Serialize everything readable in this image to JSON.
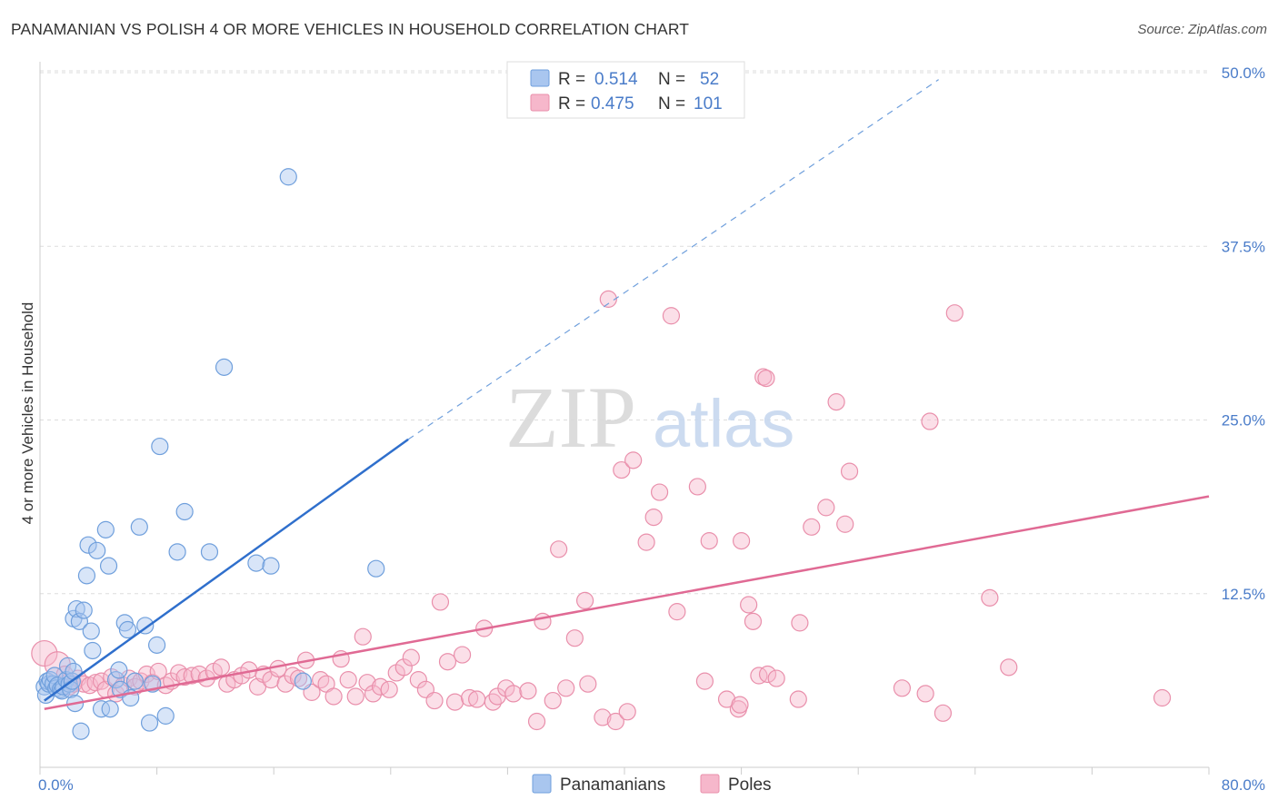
{
  "header": {
    "title": "PANAMANIAN VS POLISH 4 OR MORE VEHICLES IN HOUSEHOLD CORRELATION CHART",
    "source": "Source: ZipAtlas.com"
  },
  "watermark": {
    "zip": "ZIP",
    "atlas": "atlas"
  },
  "colors": {
    "blue_fill": "#a9c6ef",
    "blue_stroke": "#6f9fdc",
    "blue_line": "#2f6fcc",
    "pink_fill": "#f6b7cb",
    "pink_stroke": "#e98fab",
    "pink_line": "#e06a94",
    "grid": "#dddddd",
    "tick_text": "#4a7cc9"
  },
  "legend": {
    "rows": [
      {
        "r_label": "R =",
        "r_value": "0.514",
        "n_label": "N =",
        "n_value": "52"
      },
      {
        "r_label": "R =",
        "r_value": "0.475",
        "n_label": "N =",
        "n_value": "101"
      }
    ]
  },
  "bottom_legend": {
    "items": [
      "Panamanians",
      "Poles"
    ]
  },
  "chart_data": {
    "type": "scatter",
    "title": "PANAMANIAN VS POLISH 4 OR MORE VEHICLES IN HOUSEHOLD CORRELATION CHART",
    "xlabel": "",
    "ylabel": "4 or more Vehicles in Household",
    "xlim": [
      0,
      80
    ],
    "ylim": [
      0,
      50
    ],
    "x_tick_labels": [
      "0.0%",
      "80.0%"
    ],
    "y_ticks": [
      12.5,
      25.0,
      37.5,
      50.0
    ],
    "y_tick_labels": [
      "12.5%",
      "25.0%",
      "37.5%",
      "50.0%"
    ],
    "grid": true,
    "legend_position": "top-center",
    "series": [
      {
        "name": "Panamanians",
        "color": "#a9c6ef",
        "trend": {
          "x": [
            0.3,
            25.2
          ],
          "y": [
            4.8,
            23.6
          ],
          "dashed_extension": {
            "x": [
              25.2,
              61.5
            ],
            "y": [
              23.6,
              49.5
            ]
          }
        },
        "points": [
          [
            0.3,
            5.8
          ],
          [
            0.4,
            5.2
          ],
          [
            0.5,
            6.2
          ],
          [
            0.6,
            6.0
          ],
          [
            0.7,
            6.3
          ],
          [
            0.9,
            6.0
          ],
          [
            1.0,
            6.6
          ],
          [
            1.1,
            5.7
          ],
          [
            1.2,
            5.9
          ],
          [
            1.4,
            5.6
          ],
          [
            1.5,
            5.5
          ],
          [
            1.6,
            5.8
          ],
          [
            1.8,
            6.3
          ],
          [
            1.9,
            7.3
          ],
          [
            2.0,
            6.0
          ],
          [
            2.1,
            5.6
          ],
          [
            2.2,
            6.2
          ],
          [
            2.3,
            6.9
          ],
          [
            2.4,
            4.6
          ],
          [
            2.3,
            10.7
          ],
          [
            2.5,
            11.4
          ],
          [
            2.7,
            10.5
          ],
          [
            2.8,
            2.6
          ],
          [
            3.0,
            11.3
          ],
          [
            3.2,
            13.8
          ],
          [
            3.3,
            16.0
          ],
          [
            3.5,
            9.8
          ],
          [
            3.6,
            8.4
          ],
          [
            3.9,
            15.6
          ],
          [
            4.2,
            4.2
          ],
          [
            4.5,
            17.1
          ],
          [
            4.7,
            14.5
          ],
          [
            4.8,
            4.2
          ],
          [
            5.2,
            6.3
          ],
          [
            5.5,
            5.6
          ],
          [
            5.4,
            7.0
          ],
          [
            5.8,
            10.4
          ],
          [
            6.0,
            9.9
          ],
          [
            6.2,
            5.0
          ],
          [
            6.5,
            6.2
          ],
          [
            6.8,
            17.3
          ],
          [
            7.2,
            10.2
          ],
          [
            7.5,
            3.2
          ],
          [
            7.7,
            6.0
          ],
          [
            8.0,
            8.8
          ],
          [
            8.2,
            23.1
          ],
          [
            8.6,
            3.7
          ],
          [
            9.4,
            15.5
          ],
          [
            9.9,
            18.4
          ],
          [
            11.6,
            15.5
          ],
          [
            12.6,
            28.8
          ],
          [
            14.8,
            14.7
          ],
          [
            15.8,
            14.5
          ],
          [
            17.0,
            42.5
          ],
          [
            18.0,
            6.2
          ],
          [
            23.0,
            14.3
          ]
        ]
      },
      {
        "name": "Poles",
        "color": "#f6b7cb",
        "trend": {
          "x": [
            0.3,
            80
          ],
          "y": [
            4.2,
            19.5
          ]
        },
        "points": [
          [
            0.3,
            8.2
          ],
          [
            1.2,
            7.4
          ],
          [
            1.7,
            6.7
          ],
          [
            2.0,
            5.8
          ],
          [
            2.3,
            6.0
          ],
          [
            2.6,
            6.4
          ],
          [
            3.0,
            6.0
          ],
          [
            3.4,
            5.9
          ],
          [
            3.8,
            6.1
          ],
          [
            4.2,
            6.2
          ],
          [
            4.5,
            5.6
          ],
          [
            4.9,
            6.5
          ],
          [
            5.2,
            5.3
          ],
          [
            5.7,
            5.9
          ],
          [
            6.1,
            6.4
          ],
          [
            6.5,
            5.8
          ],
          [
            6.9,
            6.2
          ],
          [
            7.3,
            6.7
          ],
          [
            7.7,
            6.1
          ],
          [
            8.1,
            6.9
          ],
          [
            8.6,
            5.9
          ],
          [
            9.0,
            6.2
          ],
          [
            9.5,
            6.8
          ],
          [
            9.9,
            6.5
          ],
          [
            10.4,
            6.6
          ],
          [
            10.9,
            6.7
          ],
          [
            11.4,
            6.4
          ],
          [
            11.9,
            6.9
          ],
          [
            12.4,
            7.2
          ],
          [
            12.8,
            6.0
          ],
          [
            13.3,
            6.3
          ],
          [
            13.8,
            6.6
          ],
          [
            14.3,
            7.0
          ],
          [
            14.9,
            5.8
          ],
          [
            15.3,
            6.7
          ],
          [
            15.8,
            6.3
          ],
          [
            16.3,
            7.1
          ],
          [
            16.8,
            6.0
          ],
          [
            17.3,
            6.6
          ],
          [
            17.7,
            6.4
          ],
          [
            18.2,
            7.7
          ],
          [
            18.6,
            5.4
          ],
          [
            19.2,
            6.3
          ],
          [
            19.6,
            6.0
          ],
          [
            20.1,
            5.1
          ],
          [
            20.6,
            7.8
          ],
          [
            21.1,
            6.3
          ],
          [
            21.6,
            5.1
          ],
          [
            22.1,
            9.4
          ],
          [
            22.4,
            6.1
          ],
          [
            22.8,
            5.3
          ],
          [
            23.3,
            5.8
          ],
          [
            23.9,
            5.6
          ],
          [
            24.4,
            6.8
          ],
          [
            24.9,
            7.2
          ],
          [
            25.4,
            7.9
          ],
          [
            25.9,
            6.3
          ],
          [
            26.4,
            5.6
          ],
          [
            27.0,
            4.8
          ],
          [
            27.4,
            11.9
          ],
          [
            27.9,
            7.6
          ],
          [
            28.4,
            4.7
          ],
          [
            28.9,
            8.1
          ],
          [
            29.4,
            5.0
          ],
          [
            29.9,
            4.9
          ],
          [
            30.4,
            10.0
          ],
          [
            31.0,
            4.7
          ],
          [
            31.3,
            5.1
          ],
          [
            31.9,
            5.7
          ],
          [
            32.4,
            5.3
          ],
          [
            33.4,
            5.5
          ],
          [
            34.0,
            3.3
          ],
          [
            34.4,
            10.5
          ],
          [
            35.1,
            4.8
          ],
          [
            35.5,
            15.7
          ],
          [
            36.0,
            5.7
          ],
          [
            36.6,
            9.3
          ],
          [
            37.3,
            12.0
          ],
          [
            37.5,
            6.0
          ],
          [
            38.5,
            3.6
          ],
          [
            38.9,
            33.7
          ],
          [
            39.4,
            3.3
          ],
          [
            40.2,
            4.0
          ],
          [
            39.8,
            21.4
          ],
          [
            40.6,
            22.1
          ],
          [
            41.5,
            16.2
          ],
          [
            42.0,
            18.0
          ],
          [
            42.4,
            19.8
          ],
          [
            43.2,
            32.5
          ],
          [
            43.6,
            11.2
          ],
          [
            45.0,
            20.2
          ],
          [
            45.5,
            6.2
          ],
          [
            45.8,
            16.3
          ],
          [
            47.8,
            4.2
          ],
          [
            48.0,
            16.3
          ],
          [
            48.5,
            11.7
          ],
          [
            48.8,
            10.5
          ],
          [
            49.5,
            28.1
          ],
          [
            47.0,
            4.9
          ],
          [
            47.9,
            4.5
          ],
          [
            49.2,
            6.6
          ],
          [
            49.7,
            28.0
          ],
          [
            49.8,
            6.7
          ],
          [
            50.4,
            6.4
          ],
          [
            51.9,
            4.9
          ],
          [
            52.0,
            10.4
          ],
          [
            52.8,
            17.3
          ],
          [
            53.8,
            18.7
          ],
          [
            54.5,
            26.3
          ],
          [
            55.1,
            17.5
          ],
          [
            55.4,
            21.3
          ],
          [
            59.0,
            5.7
          ],
          [
            60.6,
            5.3
          ],
          [
            60.9,
            24.9
          ],
          [
            61.8,
            3.9
          ],
          [
            62.6,
            32.7
          ],
          [
            65.0,
            12.2
          ],
          [
            66.3,
            7.2
          ],
          [
            76.8,
            5.0
          ]
        ]
      }
    ]
  }
}
